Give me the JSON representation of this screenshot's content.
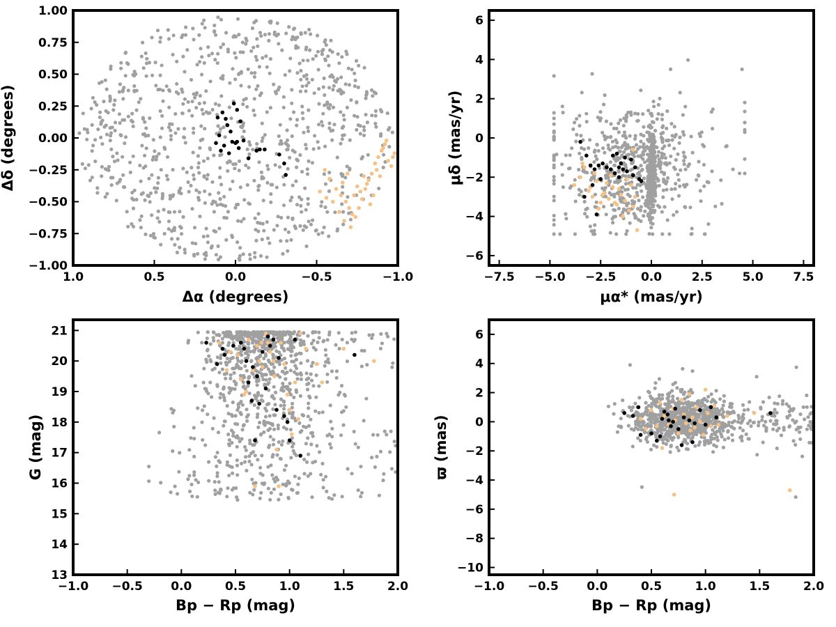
{
  "colors": {
    "field": "#a0a0a0",
    "cluster": "#000000",
    "highlight": "#f7c184",
    "frame": "#000000"
  },
  "chart_data": [
    {
      "type": "scatter",
      "title": "",
      "xlabel": "Δα (degrees)",
      "ylabel": "Δδ (degrees)",
      "xlim": [
        1.0,
        -1.0
      ],
      "ylim": [
        -1.0,
        1.0
      ],
      "x_inverted": true,
      "grid": false,
      "xticks": [
        1.0,
        0.5,
        0.0,
        -0.5,
        -1.0
      ],
      "xtick_labels": [
        "1.0",
        "0.5",
        "0.0",
        "−0.5",
        "−1.0"
      ],
      "yticks": [
        -1.0,
        -0.75,
        -0.5,
        -0.25,
        0.0,
        0.25,
        0.5,
        0.75,
        1.0
      ],
      "ytick_labels": [
        "−1.00",
        "−0.75",
        "−0.50",
        "−0.25",
        "0.00",
        "0.25",
        "0.50",
        "0.75",
        "1.00"
      ],
      "series": [
        {
          "role": "cluster",
          "x": [
            0.08,
            0.06,
            0.05,
            0.03,
            0.02,
            0.07,
            0.09,
            0.12,
            0.01,
            -0.01,
            -0.03,
            -0.05,
            -0.02,
            0.04,
            0.1,
            0.11,
            -0.08,
            -0.13,
            -0.15,
            -0.18,
            -0.27,
            -0.3,
            -0.31,
            0.0,
            -0.01
          ],
          "y": [
            0.2,
            0.15,
            0.1,
            0.05,
            -0.03,
            -0.06,
            -0.1,
            -0.04,
            0.27,
            0.22,
            0.13,
            -0.02,
            -0.08,
            -0.12,
            0.02,
            0.16,
            -0.16,
            -0.1,
            -0.09,
            -0.09,
            -0.13,
            -0.2,
            -0.29,
            -0.04,
            -0.03
          ]
        },
        {
          "role": "highlight",
          "x": [
            -0.55,
            -0.58,
            -0.62,
            -0.65,
            -0.68,
            -0.7,
            -0.72,
            -0.74,
            -0.76,
            -0.78,
            -0.8,
            -0.82,
            -0.84,
            -0.86,
            -0.88,
            -0.9,
            -0.92,
            -0.94,
            -0.96,
            -0.98,
            -0.6,
            -0.64,
            -0.67,
            -0.71,
            -0.73,
            -0.75,
            -0.79,
            -0.83,
            -0.87,
            -0.91,
            -0.52,
            -0.56,
            -0.66,
            -0.69,
            -0.77,
            -0.81,
            -0.85,
            -0.89,
            -0.93,
            -0.97
          ],
          "y": [
            -0.25,
            -0.32,
            -0.4,
            -0.45,
            -0.5,
            -0.55,
            -0.6,
            -0.62,
            -0.55,
            -0.48,
            -0.4,
            -0.33,
            -0.28,
            -0.2,
            -0.15,
            -0.1,
            -0.05,
            -0.18,
            -0.22,
            -0.12,
            -0.5,
            -0.58,
            -0.65,
            -0.7,
            -0.45,
            -0.38,
            -0.3,
            -0.52,
            -0.25,
            -0.08,
            -0.42,
            -0.47,
            -0.35,
            -0.28,
            -0.42,
            -0.36,
            -0.45,
            -0.3,
            -0.02,
            -0.15
          ]
        }
      ]
    },
    {
      "type": "scatter",
      "title": "",
      "xlabel": "μα* (mas/yr)",
      "ylabel": "μδ (mas/yr)",
      "xlim": [
        -8.0,
        8.0
      ],
      "ylim": [
        -6.5,
        6.5
      ],
      "grid": false,
      "xticks": [
        -7.5,
        -5.0,
        -2.5,
        0.0,
        2.5,
        5.0,
        7.5
      ],
      "xtick_labels": [
        "−7.5",
        "−5.0",
        "−2.5",
        "0.0",
        "2.5",
        "5.0",
        "7.5"
      ],
      "yticks": [
        -6,
        -4,
        -2,
        0,
        2,
        4,
        6
      ],
      "ytick_labels": [
        "−6",
        "−4",
        "−2",
        "0",
        "2",
        "4",
        "6"
      ],
      "series": [
        {
          "role": "cluster",
          "x": [
            -3.5,
            -3.2,
            -3.0,
            -2.8,
            -2.6,
            -2.4,
            -2.2,
            -2.0,
            -1.8,
            -1.6,
            -1.5,
            -1.4,
            -1.2,
            -1.0,
            -0.8,
            -0.6,
            -1.7,
            -1.9,
            -2.5,
            -2.9,
            -3.3,
            -1.3,
            -0.9,
            -1.6,
            -2.7,
            -0.5
          ],
          "y": [
            -0.2,
            -0.9,
            -1.4,
            -1.6,
            -1.4,
            -1.3,
            -1.5,
            -1.6,
            -1.8,
            -1.5,
            -1.3,
            -1.6,
            -1.7,
            -1.1,
            -1.5,
            -2.1,
            -0.8,
            -0.9,
            -2.1,
            -2.4,
            -3.0,
            -1.0,
            -1.9,
            -2.0,
            -3.9,
            -2.2
          ]
        },
        {
          "role": "highlight",
          "x": [
            -3.8,
            -3.5,
            -3.3,
            -3.1,
            -2.9,
            -2.7,
            -2.5,
            -2.3,
            -2.1,
            -1.9,
            -1.7,
            -1.5,
            -1.3,
            -1.1,
            -0.9,
            -0.7,
            -3.4,
            -2.8,
            -2.2,
            -1.6,
            -1.2,
            -2.6,
            -2.0,
            -1.4,
            -0.9,
            -2.4,
            -3.0,
            -1.8,
            -0.8,
            -1.0
          ],
          "y": [
            -2.4,
            -2.0,
            -1.5,
            -2.7,
            -3.0,
            -2.2,
            -3.3,
            -2.8,
            -3.1,
            -2.5,
            -3.4,
            -2.9,
            -3.2,
            -3.7,
            -3.5,
            -4.7,
            -1.3,
            -1.8,
            -2.3,
            -2.6,
            -2.1,
            -3.6,
            -1.9,
            -4.0,
            -0.6,
            -2.9,
            -2.5,
            -3.3,
            -3.0,
            -2.4
          ]
        }
      ]
    },
    {
      "type": "scatter",
      "title": "",
      "xlabel": "Bp − Rp (mag)",
      "ylabel": "G (mag)",
      "xlim": [
        -1.0,
        2.0
      ],
      "ylim": [
        13.0,
        21.35
      ],
      "grid": false,
      "xticks": [
        -1.0,
        -0.5,
        0.0,
        0.5,
        1.0,
        1.5,
        2.0
      ],
      "xtick_labels": [
        "−1.0",
        "−0.5",
        "0.0",
        "0.5",
        "1.0",
        "1.5",
        "2.0"
      ],
      "yticks": [
        13,
        14,
        15,
        16,
        17,
        18,
        19,
        20,
        21
      ],
      "ytick_labels": [
        "13",
        "14",
        "15",
        "16",
        "17",
        "18",
        "19",
        "20",
        "21"
      ],
      "series": [
        {
          "role": "cluster",
          "x": [
            0.23,
            0.33,
            0.38,
            0.4,
            0.48,
            0.55,
            0.6,
            0.62,
            0.65,
            0.68,
            0.7,
            0.72,
            0.75,
            0.78,
            0.8,
            0.82,
            0.88,
            0.9,
            0.95,
            0.98,
            1.0,
            1.05,
            1.1,
            1.6,
            0.58,
            0.66,
            0.85
          ],
          "y": [
            20.6,
            19.9,
            20.4,
            20.2,
            20.5,
            20.6,
            20.0,
            19.3,
            18.7,
            17.4,
            19.5,
            18.6,
            20.3,
            19.1,
            20.8,
            20.5,
            18.4,
            20.1,
            18.2,
            18.0,
            17.4,
            20.7,
            16.9,
            20.2,
            20.4,
            19.8,
            20.7
          ]
        },
        {
          "role": "highlight",
          "x": [
            0.35,
            0.42,
            0.48,
            0.52,
            0.55,
            0.58,
            0.62,
            0.66,
            0.7,
            0.72,
            0.75,
            0.78,
            0.8,
            0.82,
            0.85,
            0.88,
            0.9,
            0.92,
            0.95,
            0.98,
            1.0,
            1.02,
            1.05,
            1.08,
            1.1,
            1.15,
            1.25,
            1.3,
            1.5,
            1.78,
            0.45,
            0.6,
            0.68,
            0.74,
            0.86
          ],
          "y": [
            20.6,
            19.7,
            20.5,
            20.2,
            19.4,
            18.9,
            20.7,
            19.7,
            20.5,
            20.0,
            19.8,
            20.9,
            20.6,
            20.3,
            20.0,
            17.1,
            15.9,
            20.6,
            19.9,
            18.9,
            18.4,
            17.6,
            19.3,
            18.1,
            20.9,
            20.4,
            19.9,
            19.3,
            20.4,
            20.0,
            20.3,
            19.0,
            15.9,
            20.6,
            19.5
          ]
        }
      ]
    },
    {
      "type": "scatter",
      "title": "",
      "xlabel": "Bp − Rp (mag)",
      "ylabel": "ϖ (mas)",
      "xlim": [
        -1.0,
        2.0
      ],
      "ylim": [
        -10.5,
        7.0
      ],
      "grid": false,
      "xticks": [
        -1.0,
        -0.5,
        0.0,
        0.5,
        1.0,
        1.5,
        2.0
      ],
      "xtick_labels": [
        "−1.0",
        "−0.5",
        "0.0",
        "0.5",
        "1.0",
        "1.5",
        "2.0"
      ],
      "yticks": [
        -10,
        -8,
        -6,
        -4,
        -2,
        0,
        2,
        4,
        6
      ],
      "ytick_labels": [
        "−10",
        "−8",
        "−6",
        "−4",
        "−2",
        "0",
        "2",
        "4",
        "6"
      ],
      "series": [
        {
          "role": "cluster",
          "x": [
            0.25,
            0.33,
            0.38,
            0.4,
            0.5,
            0.55,
            0.6,
            0.62,
            0.65,
            0.68,
            0.7,
            0.72,
            0.75,
            0.78,
            0.8,
            0.85,
            0.88,
            0.9,
            0.95,
            1.0,
            1.05,
            1.1,
            1.6,
            0.58,
            0.66
          ],
          "y": [
            0.6,
            0.4,
            1.0,
            -0.9,
            -0.8,
            -1.3,
            0.2,
            0.7,
            0.5,
            -0.3,
            0.0,
            0.9,
            -0.5,
            -1.6,
            0.3,
            0.1,
            -1.4,
            -0.1,
            0.8,
            -0.2,
            1.0,
            0.3,
            0.6,
            -1.0,
            0.1
          ]
        },
        {
          "role": "highlight",
          "x": [
            0.4,
            0.45,
            0.5,
            0.55,
            0.58,
            0.62,
            0.66,
            0.7,
            0.72,
            0.75,
            0.78,
            0.8,
            0.82,
            0.85,
            0.88,
            0.9,
            0.92,
            0.95,
            0.98,
            1.0,
            1.02,
            1.05,
            1.08,
            1.12,
            1.2,
            1.45,
            1.78,
            0.71,
            0.6,
            0.86
          ],
          "y": [
            0.2,
            -0.5,
            0.8,
            -0.3,
            1.3,
            0.4,
            -0.2,
            0.9,
            0.1,
            -0.8,
            1.5,
            0.5,
            -0.1,
            1.9,
            0.3,
            -0.4,
            1.0,
            0.0,
            -0.9,
            2.2,
            0.6,
            -0.3,
            1.1,
            -0.2,
            0.4,
            0.6,
            -4.7,
            -5.0,
            -1.8,
            -0.6
          ]
        }
      ]
    }
  ]
}
